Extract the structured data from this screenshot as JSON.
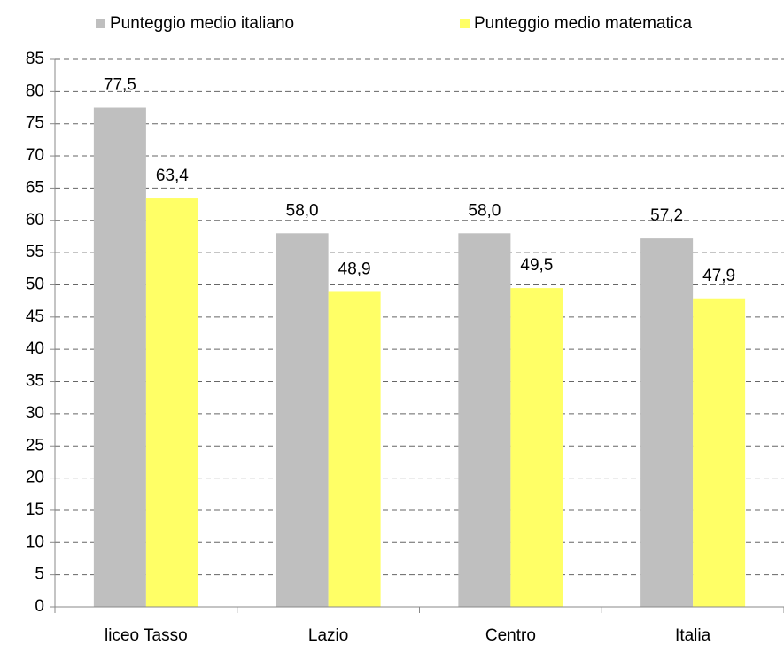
{
  "chart_data": {
    "type": "bar",
    "categories": [
      "liceo Tasso",
      "Lazio",
      "Centro",
      "Italia"
    ],
    "series": [
      {
        "name": "Punteggio medio italiano",
        "color": "#bfbfbf",
        "values": [
          77.5,
          58.0,
          58.0,
          57.2
        ],
        "value_labels": [
          "77,5",
          "58,0",
          "58,0",
          "57,2"
        ]
      },
      {
        "name": "Punteggio medio matematica",
        "color": "#ffff66",
        "values": [
          63.4,
          48.9,
          49.5,
          47.9
        ],
        "value_labels": [
          "63,4",
          "48,9",
          "49,5",
          "47,9"
        ]
      }
    ],
    "ylim": [
      0,
      85
    ],
    "yticks": [
      0,
      5,
      10,
      15,
      20,
      25,
      30,
      35,
      40,
      45,
      50,
      55,
      60,
      65,
      70,
      75,
      80,
      85
    ],
    "grid": true,
    "legend": "top"
  }
}
